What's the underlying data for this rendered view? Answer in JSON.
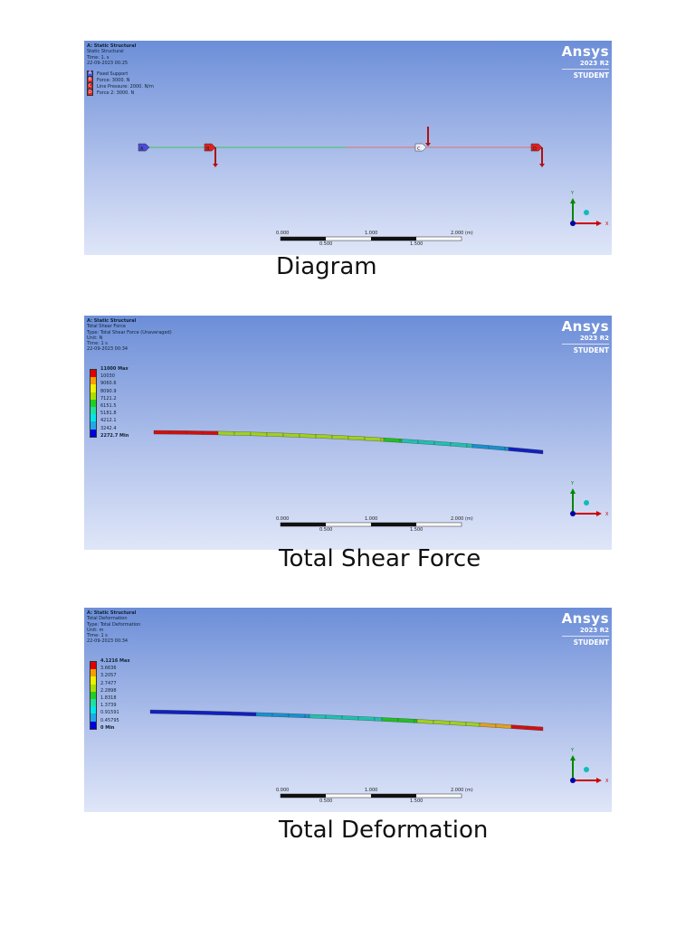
{
  "brand": {
    "name": "Ansys",
    "version": "2023 R2",
    "edition": "STUDENT"
  },
  "panels": [
    {
      "caption": "Diagram",
      "analysis": "A: Static Structural",
      "lines": [
        "Static Structural",
        "Time: 1. s",
        "22-09-2023 00:25"
      ],
      "loads": [
        {
          "key": "A",
          "label": "Fixed Support",
          "color": "#4c4cd8"
        },
        {
          "key": "B",
          "label": "Force: 3000. N",
          "color": "#e02020"
        },
        {
          "key": "C",
          "label": "Line Pressure: 2000. N/m",
          "color": "#e02020"
        },
        {
          "key": "D",
          "label": "Force 2: 3000. N",
          "color": "#e02020"
        }
      ]
    },
    {
      "caption": "Total Shear Force",
      "analysis": "A: Static Structural",
      "lines": [
        "Total Shear Force",
        "Type: Total Shear Force (Unaveraged)",
        "Unit: N",
        "Time: 1 s",
        "22-09-2023 00:34"
      ],
      "legend": [
        "11000 Max",
        "10030",
        "9060.6",
        "8090.9",
        "7121.2",
        "6151.5",
        "5181.8",
        "4212.1",
        "3242.4",
        "2272.7 Min"
      ]
    },
    {
      "caption": "Total Deformation",
      "analysis": "A: Static Structural",
      "lines": [
        "Total Deformation",
        "Type: Total Deformation",
        "Unit: m",
        "Time: 1 s",
        "22-09-2023 00:34"
      ],
      "legend": [
        "4.1216 Max",
        "3.6636",
        "3.2057",
        "2.7477",
        "2.2898",
        "1.8318",
        "1.3739",
        "0.91591",
        "0.45795",
        "0 Min"
      ]
    }
  ],
  "scale_bar": {
    "top": [
      "0.000",
      "1.000",
      "2.000 (m)"
    ],
    "bottom": [
      "0.500",
      "1.500"
    ]
  },
  "axes": {
    "x": "X",
    "y": "Y"
  },
  "legend_colors": [
    "#e00000",
    "#f5a000",
    "#f0f000",
    "#a8e000",
    "#20d020",
    "#20e0a0",
    "#00e8e8",
    "#20a8e8",
    "#0000e0"
  ]
}
